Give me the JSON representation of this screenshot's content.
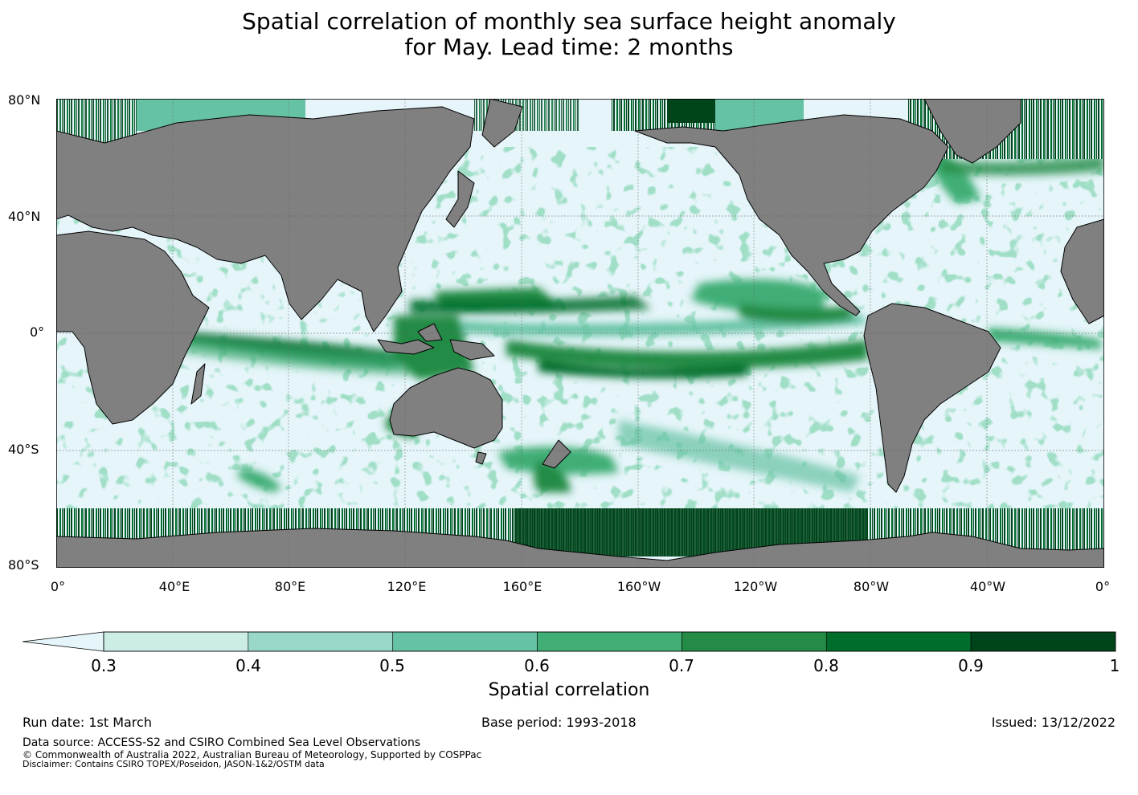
{
  "title": {
    "line1": "Spatial correlation of monthly sea surface height anomaly",
    "line2": "for May. Lead time: 2 months"
  },
  "axes": {
    "lat_labels": [
      "80°N",
      "40°N",
      "0°",
      "40°S",
      "80°S"
    ],
    "lon_labels": [
      "0°",
      "40°E",
      "80°E",
      "120°E",
      "160°E",
      "160°W",
      "120°W",
      "80°W",
      "40°W",
      "0°"
    ]
  },
  "colorbar": {
    "title": "Spatial correlation",
    "ticks": [
      "0.3",
      "0.4",
      "0.5",
      "0.6",
      "0.7",
      "0.8",
      "0.9",
      "1"
    ],
    "under_color": "#e5f5f9",
    "colors": [
      "#ccece6",
      "#99d8c9",
      "#66c2a4",
      "#41ae76",
      "#238b45",
      "#006d2c",
      "#00441b"
    ]
  },
  "colors": {
    "ocean": "#e5f5f9",
    "land": "#808080",
    "coast": "#000000",
    "grid": "#666666"
  },
  "footer": {
    "run_date": "Run date: 1st March",
    "base_period": "Base period: 1993-2018",
    "issued": "Issued: 13/12/2022",
    "data_source": "Data source: ACCESS-S2 and CSIRO Combined Sea Level Observations",
    "copyright": "© Commonwealth of Australia 2022, Australian Bureau of Meteorology, Supported by COSPPac",
    "disclaimer": "Disclaimer: Contains CSIRO TOPEX/Poseidon, JASON-1&2/OSTM data"
  }
}
